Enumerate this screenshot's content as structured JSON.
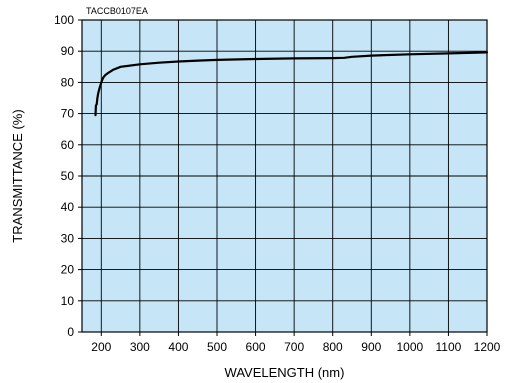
{
  "chart_data": {
    "type": "line",
    "figure_code": "TACCB0107EA",
    "xlabel": "WAVELENGTH (nm)",
    "ylabel": "TRANSMITTANCE (%)",
    "xlim": [
      150,
      1200
    ],
    "ylim": [
      0,
      100
    ],
    "x_ticks": [
      200,
      300,
      400,
      500,
      600,
      700,
      800,
      900,
      1000,
      1100,
      1200
    ],
    "y_ticks": [
      0,
      10,
      20,
      30,
      40,
      50,
      60,
      70,
      80,
      90,
      100
    ],
    "grid": true,
    "colors": {
      "plot_background": "#c6e6f8",
      "line": "#000000",
      "grid": "#000000"
    },
    "series": [
      {
        "x": [
          185,
          186,
          188,
          190,
          192,
          195,
          200,
          205,
          210,
          215,
          220,
          230,
          250,
          300,
          350,
          400,
          450,
          500,
          600,
          700,
          800,
          830,
          850,
          900,
          1000,
          1100,
          1200
        ],
        "y": [
          69.5,
          72.5,
          73,
          75,
          76.5,
          78,
          80,
          81.5,
          82.3,
          82.8,
          83.2,
          84,
          85,
          85.8,
          86.3,
          86.7,
          87,
          87.2,
          87.5,
          87.7,
          87.8,
          87.9,
          88.2,
          88.6,
          89,
          89.3,
          89.6
        ]
      }
    ]
  }
}
